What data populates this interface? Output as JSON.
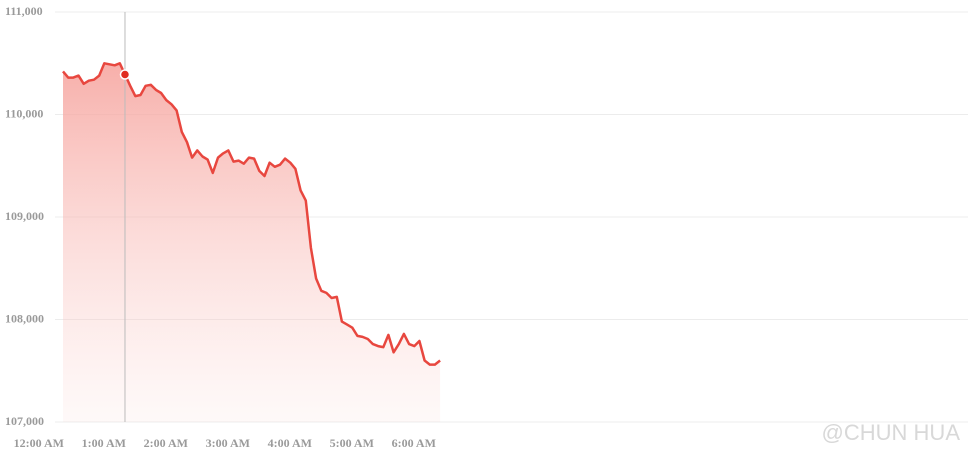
{
  "chart_data": {
    "type": "area",
    "x": [
      0,
      5,
      10,
      15,
      20,
      25,
      30,
      35,
      40,
      45,
      50,
      55,
      60,
      65,
      70,
      75,
      80,
      85,
      90,
      95,
      100,
      105,
      110,
      115,
      120,
      125,
      130,
      135,
      140,
      145,
      150,
      155,
      160,
      165,
      170,
      175,
      180,
      185,
      190,
      195,
      200,
      205,
      210,
      215,
      220,
      225,
      230,
      235,
      240,
      245,
      250,
      255,
      260,
      265,
      270,
      275,
      280,
      285,
      290,
      295,
      300,
      305,
      310,
      315,
      320,
      325,
      330,
      335,
      340,
      345,
      350,
      355,
      360,
      365
    ],
    "series": [
      {
        "color": "#e8473f",
        "values": [
          110420,
          110360,
          110360,
          110380,
          110300,
          110330,
          110340,
          110380,
          110500,
          110490,
          110480,
          110500,
          110390,
          110280,
          110180,
          110190,
          110280,
          110290,
          110240,
          110210,
          110140,
          110100,
          110040,
          109830,
          109730,
          109580,
          109650,
          109590,
          109560,
          109430,
          109580,
          109620,
          109650,
          109540,
          109550,
          109520,
          109580,
          109570,
          109450,
          109400,
          109530,
          109490,
          109510,
          109570,
          109530,
          109470,
          109260,
          109160,
          108700,
          108400,
          108280,
          108260,
          108210,
          108220,
          107980,
          107950,
          107920,
          107840,
          107830,
          107810,
          107760,
          107740,
          107730,
          107850,
          107680,
          107760,
          107860,
          107760,
          107740,
          107790,
          107600,
          107560,
          107560,
          107600
        ]
      }
    ],
    "highlight_index": 12,
    "xlim": [
      0,
      876
    ],
    "xticks": [
      {
        "value": 0,
        "label": "12:00 AM"
      },
      {
        "value": 60,
        "label": "1:00 AM"
      },
      {
        "value": 120,
        "label": "2:00 AM"
      },
      {
        "value": 180,
        "label": "3:00 AM"
      },
      {
        "value": 240,
        "label": "4:00 AM"
      },
      {
        "value": 300,
        "label": "5:00 AM"
      },
      {
        "value": 360,
        "label": "6:00 AM"
      }
    ],
    "ylim": [
      107000,
      111000
    ],
    "yticks": [
      {
        "value": 107000,
        "label": "107,000"
      },
      {
        "value": 108000,
        "label": "108,000"
      },
      {
        "value": 109000,
        "label": "109,000"
      },
      {
        "value": 110000,
        "label": "110,000"
      },
      {
        "value": 111000,
        "label": "111,000"
      }
    ],
    "grid": true,
    "watermark": "@CHUN  HUA"
  }
}
